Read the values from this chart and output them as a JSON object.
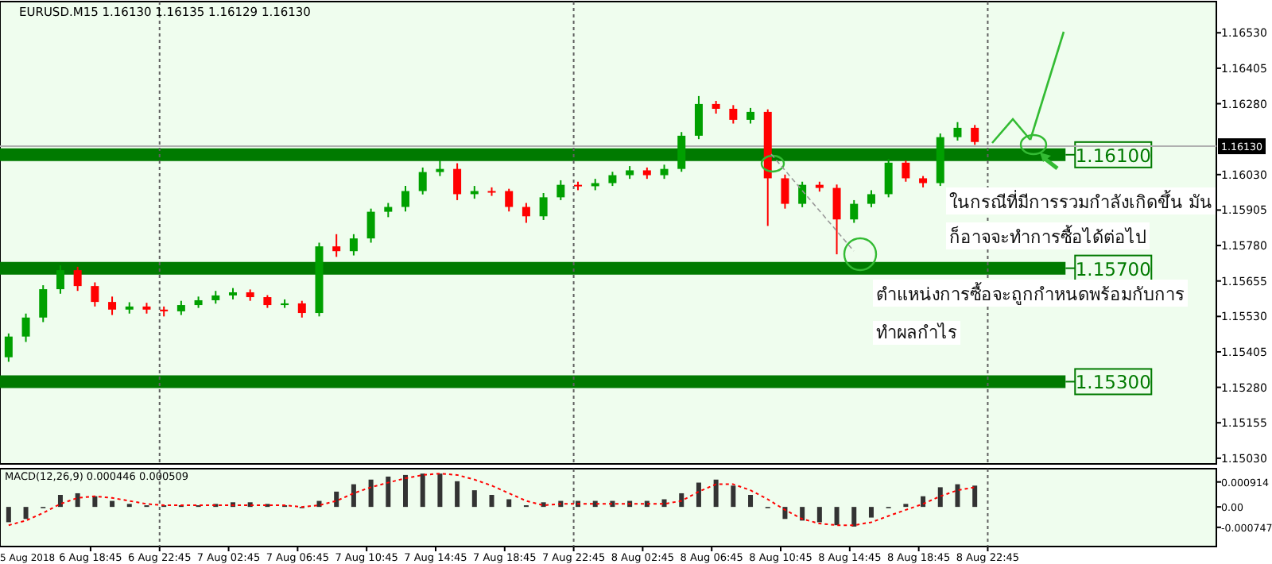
{
  "chart_data": [
    {
      "type": "candlestick",
      "title": "EURUSD.M15 1.16130 1.16135 1.16129 1.16130",
      "x": [
        "2018-08-06T14:00",
        "2018-08-06T15:00",
        "2018-08-06T16:00",
        "2018-08-06T17:00",
        "2018-08-06T18:00",
        "2018-08-06T19:00",
        "2018-08-06T20:00",
        "2018-08-06T21:00",
        "2018-08-06T22:00",
        "2018-08-06T23:00",
        "2018-08-07T00:00",
        "2018-08-07T01:00",
        "2018-08-07T02:00",
        "2018-08-07T03:00",
        "2018-08-07T04:00",
        "2018-08-07T05:00",
        "2018-08-07T06:00",
        "2018-08-07T07:00",
        "2018-08-07T08:00",
        "2018-08-07T09:00",
        "2018-08-07T10:00",
        "2018-08-07T11:00",
        "2018-08-07T12:00",
        "2018-08-07T13:00",
        "2018-08-07T14:00",
        "2018-08-07T15:00",
        "2018-08-07T16:00",
        "2018-08-07T17:00",
        "2018-08-07T18:00",
        "2018-08-07T19:00",
        "2018-08-07T20:00",
        "2018-08-07T21:00",
        "2018-08-07T22:00",
        "2018-08-07T23:00",
        "2018-08-08T00:00",
        "2018-08-08T01:00",
        "2018-08-08T02:00",
        "2018-08-08T03:00",
        "2018-08-08T04:00",
        "2018-08-08T05:00",
        "2018-08-08T06:00",
        "2018-08-08T07:00",
        "2018-08-08T08:00",
        "2018-08-08T09:00",
        "2018-08-08T10:00",
        "2018-08-08T11:00",
        "2018-08-08T12:00",
        "2018-08-08T13:00",
        "2018-08-08T14:00",
        "2018-08-08T15:00",
        "2018-08-08T16:00",
        "2018-08-08T17:00",
        "2018-08-08T18:00",
        "2018-08-08T19:00",
        "2018-08-08T20:00",
        "2018-08-08T21:00",
        "2018-08-08T22:00"
      ],
      "ohlc": [
        [
          1.15386,
          1.1547,
          1.1537,
          1.15459
        ],
        [
          1.15459,
          1.1554,
          1.1544,
          1.15526
        ],
        [
          1.15526,
          1.1564,
          1.1551,
          1.15626
        ],
        [
          1.15626,
          1.1571,
          1.1561,
          1.15693
        ],
        [
          1.15693,
          1.15705,
          1.1562,
          1.15637
        ],
        [
          1.15637,
          1.1565,
          1.15565,
          1.15581
        ],
        [
          1.15581,
          1.156,
          1.15535,
          1.15554
        ],
        [
          1.15554,
          1.1558,
          1.1554,
          1.15565
        ],
        [
          1.15565,
          1.15578,
          1.1554,
          1.15554
        ],
        [
          1.15554,
          1.15565,
          1.1553,
          1.15548
        ],
        [
          1.15548,
          1.15585,
          1.15535,
          1.1557
        ],
        [
          1.1557,
          1.156,
          1.1556,
          1.15587
        ],
        [
          1.15587,
          1.1562,
          1.15575,
          1.15604
        ],
        [
          1.15604,
          1.1563,
          1.1559,
          1.15615
        ],
        [
          1.15615,
          1.15625,
          1.15585,
          1.15598
        ],
        [
          1.15598,
          1.15605,
          1.1556,
          1.1557
        ],
        [
          1.1557,
          1.1559,
          1.1556,
          1.15576
        ],
        [
          1.15576,
          1.15585,
          1.15526,
          1.15542
        ],
        [
          1.15542,
          1.1579,
          1.1553,
          1.15777
        ],
        [
          1.15777,
          1.1582,
          1.1574,
          1.1576
        ],
        [
          1.1576,
          1.1582,
          1.15745,
          1.15805
        ],
        [
          1.15805,
          1.1591,
          1.1579,
          1.15899
        ],
        [
          1.15899,
          1.1593,
          1.1588,
          1.15916
        ],
        [
          1.15916,
          1.1599,
          1.159,
          1.15972
        ],
        [
          1.15972,
          1.16055,
          1.1596,
          1.16039
        ],
        [
          1.16039,
          1.1608,
          1.16025,
          1.1605
        ],
        [
          1.1605,
          1.1607,
          1.1594,
          1.15961
        ],
        [
          1.15961,
          1.1599,
          1.15945,
          1.15972
        ],
        [
          1.15972,
          1.15985,
          1.15955,
          1.15972
        ],
        [
          1.15972,
          1.1598,
          1.159,
          1.15916
        ],
        [
          1.15916,
          1.1593,
          1.1586,
          1.15883
        ],
        [
          1.15883,
          1.15965,
          1.1587,
          1.1595
        ],
        [
          1.1595,
          1.1601,
          1.1594,
          1.15994
        ],
        [
          1.15994,
          1.16005,
          1.15975,
          1.15989
        ],
        [
          1.15989,
          1.16015,
          1.15975,
          1.16
        ],
        [
          1.16,
          1.1604,
          1.1599,
          1.16028
        ],
        [
          1.16028,
          1.1606,
          1.16015,
          1.16045
        ],
        [
          1.16045,
          1.16055,
          1.16015,
          1.16028
        ],
        [
          1.16028,
          1.16065,
          1.16015,
          1.1605
        ],
        [
          1.1605,
          1.1618,
          1.1604,
          1.16167
        ],
        [
          1.16167,
          1.16307,
          1.16155,
          1.16279
        ],
        [
          1.16279,
          1.1629,
          1.16245,
          1.16262
        ],
        [
          1.16262,
          1.16275,
          1.1621,
          1.16223
        ],
        [
          1.16223,
          1.16265,
          1.1621,
          1.16251
        ],
        [
          1.16251,
          1.1626,
          1.15849,
          1.16017
        ],
        [
          1.16017,
          1.1603,
          1.1591,
          1.15927
        ],
        [
          1.15927,
          1.16005,
          1.15915,
          1.15994
        ],
        [
          1.15994,
          1.16005,
          1.1597,
          1.15983
        ],
        [
          1.15983,
          1.15995,
          1.15749,
          1.15872
        ],
        [
          1.15872,
          1.1594,
          1.1586,
          1.15927
        ],
        [
          1.15927,
          1.15975,
          1.15915,
          1.15961
        ],
        [
          1.15961,
          1.16085,
          1.1595,
          1.16072
        ],
        [
          1.16072,
          1.1608,
          1.16005,
          1.16017
        ],
        [
          1.16017,
          1.16025,
          1.15985,
          1.16
        ],
        [
          1.16,
          1.16175,
          1.1599,
          1.16162
        ],
        [
          1.16162,
          1.16215,
          1.1615,
          1.16195
        ],
        [
          1.16195,
          1.16205,
          1.16135,
          1.16145
        ]
      ],
      "colors": [
        "#00a000",
        "#00a000",
        "#00a000",
        "#00a000",
        "#ff0000",
        "#ff0000",
        "#ff0000",
        "#00a000",
        "#ff0000",
        "#ff0000",
        "#00a000",
        "#00a000",
        "#00a000",
        "#00a000",
        "#ff0000",
        "#ff0000",
        "#00a000",
        "#ff0000",
        "#00a000",
        "#ff0000",
        "#00a000",
        "#00a000",
        "#00a000",
        "#00a000",
        "#00a000",
        "#00a000",
        "#ff0000",
        "#00a000",
        "#ff0000",
        "#ff0000",
        "#ff0000",
        "#00a000",
        "#00a000",
        "#ff0000",
        "#00a000",
        "#00a000",
        "#00a000",
        "#ff0000",
        "#00a000",
        "#00a000",
        "#00a000",
        "#ff0000",
        "#ff0000",
        "#00a000",
        "#ff0000",
        "#ff0000",
        "#00a000",
        "#ff0000",
        "#ff0000",
        "#00a000",
        "#00a000",
        "#00a000",
        "#ff0000",
        "#ff0000",
        "#00a000",
        "#00a000",
        "#ff0000"
      ],
      "xlim": [
        "2018-08-06T13:30",
        "2018-08-09T12:00"
      ],
      "ylim": [
        1.1501,
        1.1664
      ],
      "yticks": [
        {
          "value": 1.1653,
          "label": "1.16530"
        },
        {
          "value": 1.16405,
          "label": "1.16405"
        },
        {
          "value": 1.1628,
          "label": "1.16280"
        },
        {
          "value": 1.1603,
          "label": "1.16030"
        },
        {
          "value": 1.15905,
          "label": "1.15905"
        },
        {
          "value": 1.1578,
          "label": "1.15780"
        },
        {
          "value": 1.15655,
          "label": "1.15655"
        },
        {
          "value": 1.1553,
          "label": "1.15530"
        },
        {
          "value": 1.15405,
          "label": "1.15405"
        },
        {
          "value": 1.1528,
          "label": "1.15280"
        },
        {
          "value": 1.15155,
          "label": "1.15155"
        },
        {
          "value": 1.1503,
          "label": "1.15030"
        }
      ],
      "tick_labels": "y",
      "ref_lines": [
        {
          "axis": "y",
          "value": 1.161,
          "label": "1.16100",
          "color": "#007a00"
        },
        {
          "axis": "y",
          "value": 1.157,
          "label": "1.15700",
          "color": "#007a00"
        },
        {
          "axis": "y",
          "value": 1.153,
          "label": "1.15300",
          "color": "#007a00"
        },
        {
          "axis": "y",
          "value": 1.1613,
          "label": "1.16130",
          "color": "#b0b0b0",
          "line_style": "solid"
        },
        {
          "axis": "x",
          "value": "2018-08-06T22:45",
          "color": "#606060",
          "line_style": "dotted"
        },
        {
          "axis": "x",
          "value": "2018-08-07T22:45",
          "color": "#606060",
          "line_style": "dotted"
        },
        {
          "axis": "x",
          "value": "2018-08-08T22:45",
          "color": "#606060",
          "line_style": "dotted"
        }
      ],
      "annotations": [
        "ในกรณีที่มีการรวมกำลังเกิดขึ้น มัน",
        "ก็อาจจะทำการซื้อได้ต่อไป",
        "ตำแหน่งการซื้อจะถูกกำหนดพร้อมกับการ",
        "ทำผลกำไร"
      ]
    },
    {
      "type": "bar",
      "title": "MACD(12,26,9) 0.000446 0.000509",
      "x": [
        "2018-08-06T14:00",
        "2018-08-06T15:00",
        "2018-08-06T16:00",
        "2018-08-06T17:00",
        "2018-08-06T18:00",
        "2018-08-06T19:00",
        "2018-08-06T20:00",
        "2018-08-06T21:00",
        "2018-08-06T22:00",
        "2018-08-06T23:00",
        "2018-08-07T00:00",
        "2018-08-07T01:00",
        "2018-08-07T02:00",
        "2018-08-07T03:00",
        "2018-08-07T04:00",
        "2018-08-07T05:00",
        "2018-08-07T06:00",
        "2018-08-07T07:00",
        "2018-08-07T08:00",
        "2018-08-07T09:00",
        "2018-08-07T10:00",
        "2018-08-07T11:00",
        "2018-08-07T12:00",
        "2018-08-07T13:00",
        "2018-08-07T14:00",
        "2018-08-07T15:00",
        "2018-08-07T16:00",
        "2018-08-07T17:00",
        "2018-08-07T18:00",
        "2018-08-07T19:00",
        "2018-08-07T20:00",
        "2018-08-07T21:00",
        "2018-08-07T22:00",
        "2018-08-07T23:00",
        "2018-08-08T00:00",
        "2018-08-08T01:00",
        "2018-08-08T02:00",
        "2018-08-08T03:00",
        "2018-08-08T04:00",
        "2018-08-08T05:00",
        "2018-08-08T06:00",
        "2018-08-08T07:00",
        "2018-08-08T08:00",
        "2018-08-08T09:00",
        "2018-08-08T10:00",
        "2018-08-08T11:00",
        "2018-08-08T12:00",
        "2018-08-08T13:00",
        "2018-08-08T14:00",
        "2018-08-08T15:00",
        "2018-08-08T16:00",
        "2018-08-08T17:00",
        "2018-08-08T18:00",
        "2018-08-08T19:00",
        "2018-08-08T20:00",
        "2018-08-08T21:00",
        "2018-08-08T22:00"
      ],
      "series": [
        {
          "type": "bar",
          "color": "#333333",
          "values": [
            -0.00056,
            -0.00044,
            0,
            0.00044,
            0.0005,
            0.00039,
            0.00022,
            0.00011,
            6e-05,
            6e-05,
            6e-05,
            6e-05,
            0.00011,
            0.00017,
            0.00017,
            0.00011,
            6e-05,
            0,
            0.00022,
            0.00056,
            0.00083,
            0.001,
            0.00111,
            0.00117,
            0.00122,
            0.00122,
            0.00094,
            0.00061,
            0.00044,
            0.00028,
            6e-05,
            0.00017,
            0.00022,
            0.00022,
            0.00022,
            0.00022,
            0.00022,
            0.00022,
            0.00028,
            0.0005,
            0.00089,
            0.001,
            0.00078,
            0.00044,
            0,
            -0.00044,
            -0.0005,
            -0.00056,
            -0.00067,
            -0.00072,
            -0.00039,
            0,
            0.00011,
            0.00039,
            0.00072,
            0.00083,
            0.00078
          ]
        },
        {
          "type": "line",
          "color": "#ff0000",
          "line_style": "dotted",
          "values": [
            -0.00067,
            -0.0005,
            -0.00022,
            0.00011,
            0.00033,
            0.00039,
            0.00033,
            0.00022,
            0.00011,
            6e-05,
            6e-05,
            6e-05,
            6e-05,
            6e-05,
            6e-05,
            6e-05,
            6e-05,
            0,
            6e-05,
            0.00022,
            0.0005,
            0.00072,
            0.00089,
            0.00105,
            0.00117,
            0.00122,
            0.00117,
            0.001,
            0.00078,
            0.0005,
            0.00022,
            6e-05,
            0.00011,
            0.00011,
            0.00011,
            0.00011,
            0.00011,
            0.00011,
            0.00011,
            0.00022,
            0.00056,
            0.00083,
            0.00083,
            0.00061,
            0.00028,
            -0.00011,
            -0.00044,
            -0.00061,
            -0.00067,
            -0.00067,
            -0.00056,
            -0.00033,
            -0.00011,
            0.00011,
            0.00039,
            0.00061,
            0.00072
          ]
        }
      ],
      "xlim": [
        "2018-08-06T13:30",
        "2018-08-09T12:00"
      ],
      "annotations": [
        "5 Aug 2018"
      ],
      "xticks": [
        {
          "value": "2018-08-06T18:45",
          "label": "6 Aug 18:45"
        },
        {
          "value": "2018-08-06T22:45",
          "label": "6 Aug 22:45"
        },
        {
          "value": "2018-08-07T02:45",
          "label": "7 Aug 02:45"
        },
        {
          "value": "2018-08-07T06:45",
          "label": "7 Aug 06:45"
        },
        {
          "value": "2018-08-07T10:45",
          "label": "7 Aug 10:45"
        },
        {
          "value": "2018-08-07T14:45",
          "label": "7 Aug 14:45"
        },
        {
          "value": "2018-08-07T18:45",
          "label": "7 Aug 18:45"
        },
        {
          "value": "2018-08-07T22:45",
          "label": "7 Aug 22:45"
        },
        {
          "value": "2018-08-08T02:45",
          "label": "8 Aug 02:45"
        },
        {
          "value": "2018-08-08T06:45",
          "label": "8 Aug 06:45"
        },
        {
          "value": "2018-08-08T10:45",
          "label": "8 Aug 10:45"
        },
        {
          "value": "2018-08-08T14:45",
          "label": "8 Aug 14:45"
        },
        {
          "value": "2018-08-08T18:45",
          "label": "8 Aug 18:45"
        },
        {
          "value": "2018-08-08T22:45",
          "label": "8 Aug 22:45"
        }
      ],
      "ylim": [
        -0.00145,
        0.0014
      ],
      "yticks": [
        0.000914,
        {
          "value": 0,
          "label": "0.00"
        },
        -0.000747
      ],
      "ref_lines": [
        {
          "axis": "x",
          "value": "2018-08-06T22:45",
          "color": "#606060",
          "line_style": "dotted"
        },
        {
          "axis": "x",
          "value": "2018-08-07T22:45",
          "color": "#606060",
          "line_style": "dotted"
        },
        {
          "axis": "x",
          "value": "2018-08-08T22:45",
          "color": "#606060",
          "line_style": "dotted"
        }
      ]
    }
  ]
}
